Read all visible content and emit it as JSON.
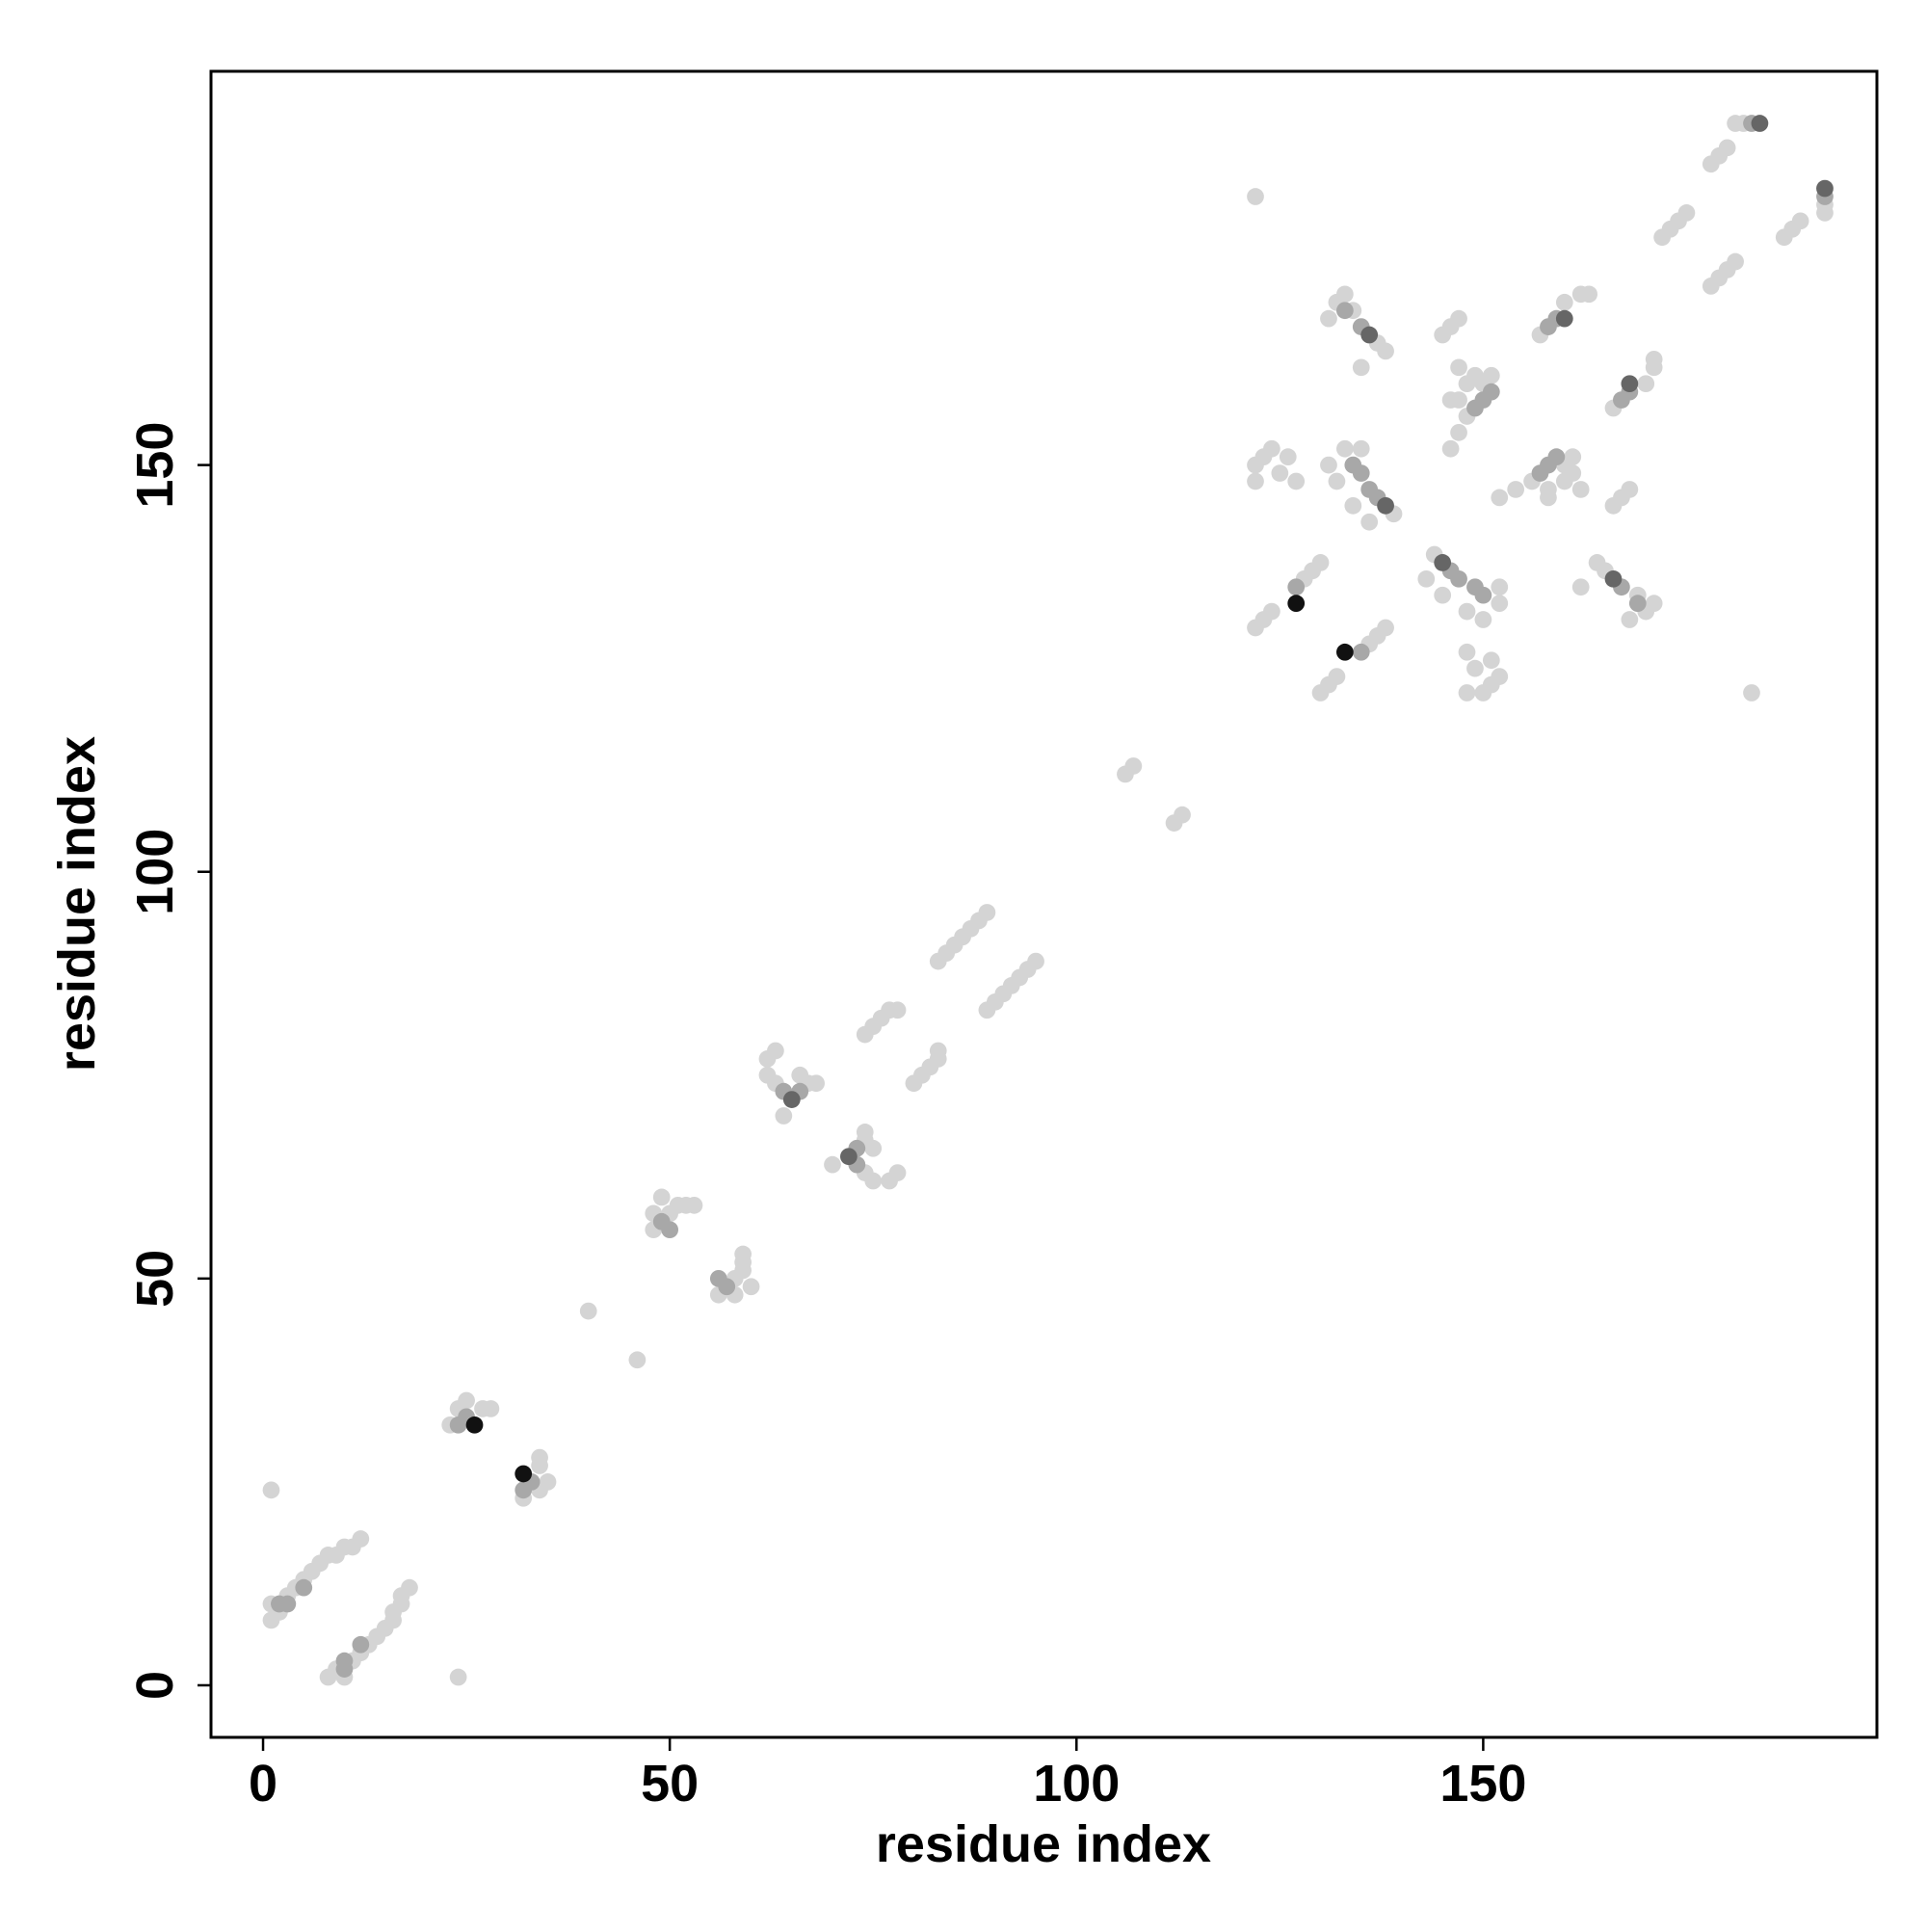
{
  "chart_data": {
    "type": "scatter",
    "xlabel": "residue index",
    "ylabel": "residue index",
    "xlim": [
      -6.4,
      198.4
    ],
    "ylim": [
      -6.4,
      198.4
    ],
    "xticks": [
      0,
      50,
      100,
      150
    ],
    "yticks": [
      0,
      50,
      100,
      150
    ],
    "series": [
      {
        "color": "#d4d4d4",
        "x": [
          1,
          1,
          1,
          2,
          3,
          4,
          5,
          6,
          7,
          8,
          9,
          10,
          11,
          12,
          23,
          24,
          25,
          27,
          28,
          40,
          48,
          48,
          49,
          50,
          51,
          52,
          53,
          62,
          62,
          63,
          63,
          66,
          67,
          68,
          64,
          74,
          75,
          76,
          77,
          78,
          83,
          84,
          85,
          86,
          87,
          88,
          89,
          106,
          107,
          122,
          122,
          123,
          124,
          125,
          126,
          127,
          122,
          123,
          124,
          128,
          129,
          130,
          131,
          132,
          133,
          134,
          137,
          138,
          135,
          131,
          132,
          133,
          135,
          134,
          136,
          139,
          145,
          146,
          147,
          146,
          147,
          148,
          147,
          148,
          149,
          150,
          147,
          151,
          146,
          157,
          160,
          162,
          163,
          172,
          173,
          174,
          175,
          178,
          179,
          180,
          181,
          182,
          122,
          24,
          8,
          10,
          9,
          11,
          12,
          13,
          14,
          15,
          16,
          16,
          17,
          17,
          18,
          32,
          34,
          35,
          34,
          34,
          46,
          58,
          56,
          60,
          58,
          59,
          59,
          59,
          77,
          75,
          78,
          74,
          75,
          74,
          74,
          70,
          80,
          81,
          82,
          83,
          83,
          89,
          90,
          91,
          92,
          93,
          94,
          95,
          112,
          113,
          150,
          148,
          151,
          152,
          149,
          151,
          148,
          130,
          131,
          132,
          136,
          137,
          138,
          168,
          170,
          171,
          169,
          165,
          164,
          162,
          150,
          148,
          152,
          152,
          145,
          143,
          144,
          166,
          167,
          168,
          152,
          154,
          156,
          158,
          160,
          161,
          160,
          162,
          161,
          158,
          166,
          170,
          171,
          171,
          178,
          179,
          180,
          181,
          187,
          188,
          189,
          192,
          192,
          183
        ],
        "values": [
          24,
          8,
          10,
          9,
          11,
          12,
          13,
          14,
          15,
          16,
          16,
          17,
          17,
          18,
          32,
          34,
          35,
          34,
          34,
          46,
          58,
          56,
          60,
          58,
          59,
          59,
          59,
          77,
          75,
          78,
          74,
          75,
          74,
          74,
          70,
          80,
          81,
          82,
          83,
          83,
          89,
          90,
          91,
          92,
          93,
          94,
          95,
          112,
          113,
          150,
          148,
          151,
          152,
          149,
          151,
          148,
          130,
          131,
          132,
          136,
          137,
          138,
          168,
          170,
          171,
          169,
          165,
          164,
          162,
          150,
          148,
          152,
          152,
          145,
          143,
          144,
          166,
          167,
          168,
          152,
          154,
          156,
          158,
          160,
          161,
          160,
          162,
          161,
          158,
          166,
          170,
          171,
          171,
          178,
          179,
          180,
          181,
          187,
          188,
          189,
          192,
          192,
          183,
          1,
          1,
          1,
          2,
          3,
          4,
          5,
          6,
          7,
          8,
          9,
          10,
          11,
          12,
          23,
          24,
          25,
          27,
          28,
          40,
          48,
          48,
          49,
          50,
          51,
          52,
          53,
          62,
          62,
          63,
          63,
          66,
          67,
          68,
          64,
          74,
          75,
          76,
          77,
          78,
          83,
          84,
          85,
          86,
          87,
          88,
          89,
          106,
          107,
          122,
          122,
          123,
          124,
          125,
          126,
          127,
          122,
          123,
          124,
          128,
          129,
          130,
          131,
          132,
          133,
          134,
          137,
          138,
          135,
          131,
          132,
          133,
          135,
          134,
          136,
          139,
          145,
          146,
          147,
          146,
          147,
          148,
          147,
          148,
          149,
          150,
          147,
          151,
          146,
          157,
          160,
          162,
          163,
          172,
          173,
          174,
          175,
          178,
          179,
          180,
          181,
          182,
          122
        ]
      },
      {
        "color": "#a8a8a8",
        "x": [
          2,
          3,
          5,
          24,
          25,
          49,
          50,
          64,
          66,
          127,
          133,
          135,
          134,
          135,
          136,
          137,
          149,
          150,
          151,
          158,
          159,
          183,
          10,
          10,
          12,
          32,
          33,
          57,
          56,
          73,
          73,
          135,
          169,
          167,
          150,
          149,
          147,
          146,
          157,
          158,
          159,
          167,
          168,
          192
        ],
        "values": [
          10,
          10,
          12,
          32,
          33,
          57,
          56,
          73,
          73,
          135,
          169,
          167,
          150,
          149,
          147,
          146,
          157,
          158,
          159,
          167,
          168,
          192,
          2,
          3,
          5,
          24,
          25,
          49,
          50,
          64,
          66,
          127,
          133,
          135,
          134,
          135,
          136,
          137,
          149,
          150,
          151,
          158,
          159,
          183
        ]
      },
      {
        "color": "#666666",
        "x": [
          65,
          136,
          138,
          160,
          184,
          72,
          166,
          145,
          168,
          192
        ],
        "values": [
          72,
          166,
          145,
          168,
          192,
          65,
          136,
          138,
          160,
          184
        ]
      },
      {
        "color": "#111111",
        "x": [
          26,
          127,
          32,
          133
        ],
        "values": [
          32,
          133,
          26,
          127
        ]
      }
    ]
  }
}
